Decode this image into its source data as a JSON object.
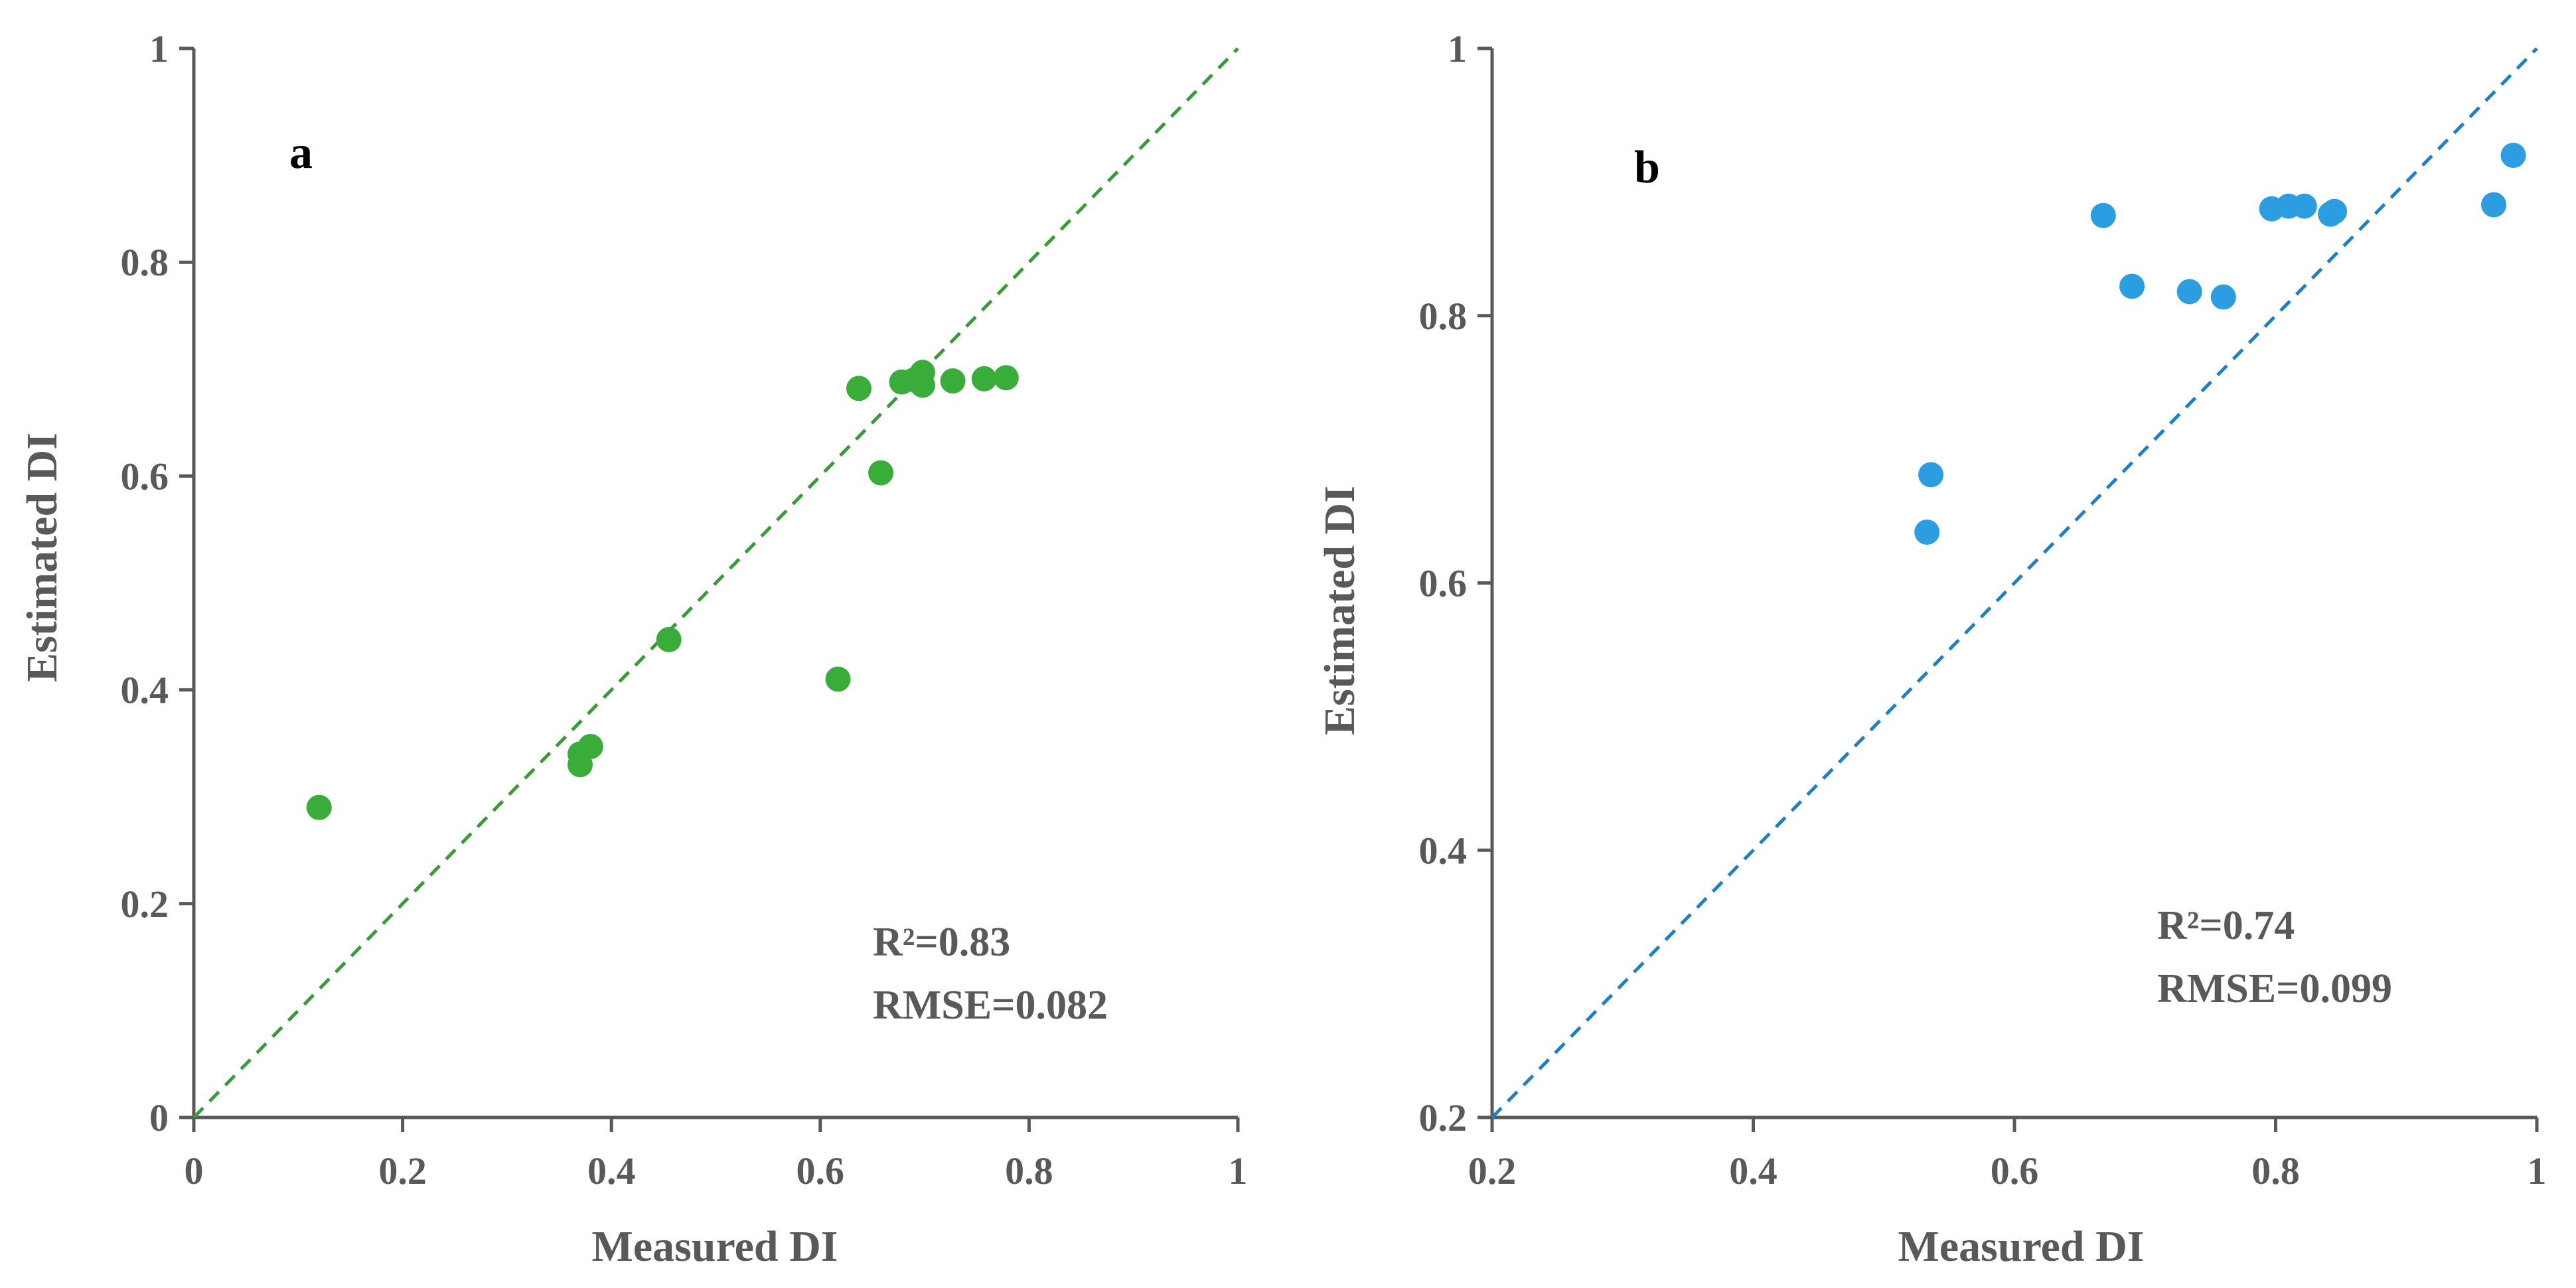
{
  "chart_data": [
    {
      "type": "scatter",
      "panel": "a",
      "xlabel": "Measured DI",
      "ylabel": "Estimated DI",
      "xlim": [
        0,
        1
      ],
      "ylim": [
        0,
        1
      ],
      "xticks": [
        0,
        0.2,
        0.4,
        0.6,
        0.8,
        1
      ],
      "xtick_labels": [
        "0",
        "0.2",
        "0.4",
        "0.6",
        "0.8",
        "1"
      ],
      "yticks": [
        0,
        0.2,
        0.4,
        0.6,
        0.8,
        1
      ],
      "ytick_labels": [
        "0",
        "0.2",
        "0.4",
        "0.6",
        "0.8",
        "1"
      ],
      "color": "#3aac3a",
      "reference_line": "1:1 dashed",
      "r2_label": "R²=0.83",
      "rmse_label": "RMSE=0.082",
      "points": [
        {
          "x": 0.12,
          "y": 0.29
        },
        {
          "x": 0.37,
          "y": 0.33
        },
        {
          "x": 0.37,
          "y": 0.34
        },
        {
          "x": 0.38,
          "y": 0.347
        },
        {
          "x": 0.455,
          "y": 0.447
        },
        {
          "x": 0.617,
          "y": 0.41
        },
        {
          "x": 0.637,
          "y": 0.682
        },
        {
          "x": 0.658,
          "y": 0.603
        },
        {
          "x": 0.678,
          "y": 0.688
        },
        {
          "x": 0.69,
          "y": 0.69
        },
        {
          "x": 0.698,
          "y": 0.697
        },
        {
          "x": 0.698,
          "y": 0.685
        },
        {
          "x": 0.727,
          "y": 0.689
        },
        {
          "x": 0.757,
          "y": 0.691
        },
        {
          "x": 0.778,
          "y": 0.692
        }
      ]
    },
    {
      "type": "scatter",
      "panel": "b",
      "xlabel": "Measured DI",
      "ylabel": "Estimated DI",
      "xlim": [
        0.2,
        1
      ],
      "ylim": [
        0.2,
        1
      ],
      "xticks": [
        0.2,
        0.4,
        0.6,
        0.8,
        1
      ],
      "xtick_labels": [
        "0.2",
        "0.4",
        "0.6",
        "0.8",
        "1"
      ],
      "yticks": [
        0.2,
        0.4,
        0.6,
        0.8,
        1
      ],
      "ytick_labels": [
        "0.2",
        "0.4",
        "0.6",
        "0.8",
        "1"
      ],
      "color": "#2b9de0",
      "reference_line": "1:1 dashed",
      "line_color": "#1f7fc0",
      "r2_label": "R²=0.74",
      "rmse_label": "RMSE=0.099",
      "points": [
        {
          "x": 0.533,
          "y": 0.638
        },
        {
          "x": 0.536,
          "y": 0.681
        },
        {
          "x": 0.668,
          "y": 0.875
        },
        {
          "x": 0.69,
          "y": 0.822
        },
        {
          "x": 0.734,
          "y": 0.818
        },
        {
          "x": 0.76,
          "y": 0.814
        },
        {
          "x": 0.797,
          "y": 0.88
        },
        {
          "x": 0.81,
          "y": 0.882
        },
        {
          "x": 0.822,
          "y": 0.882
        },
        {
          "x": 0.842,
          "y": 0.876
        },
        {
          "x": 0.845,
          "y": 0.878
        },
        {
          "x": 0.967,
          "y": 0.883
        },
        {
          "x": 0.982,
          "y": 0.92
        }
      ]
    }
  ]
}
